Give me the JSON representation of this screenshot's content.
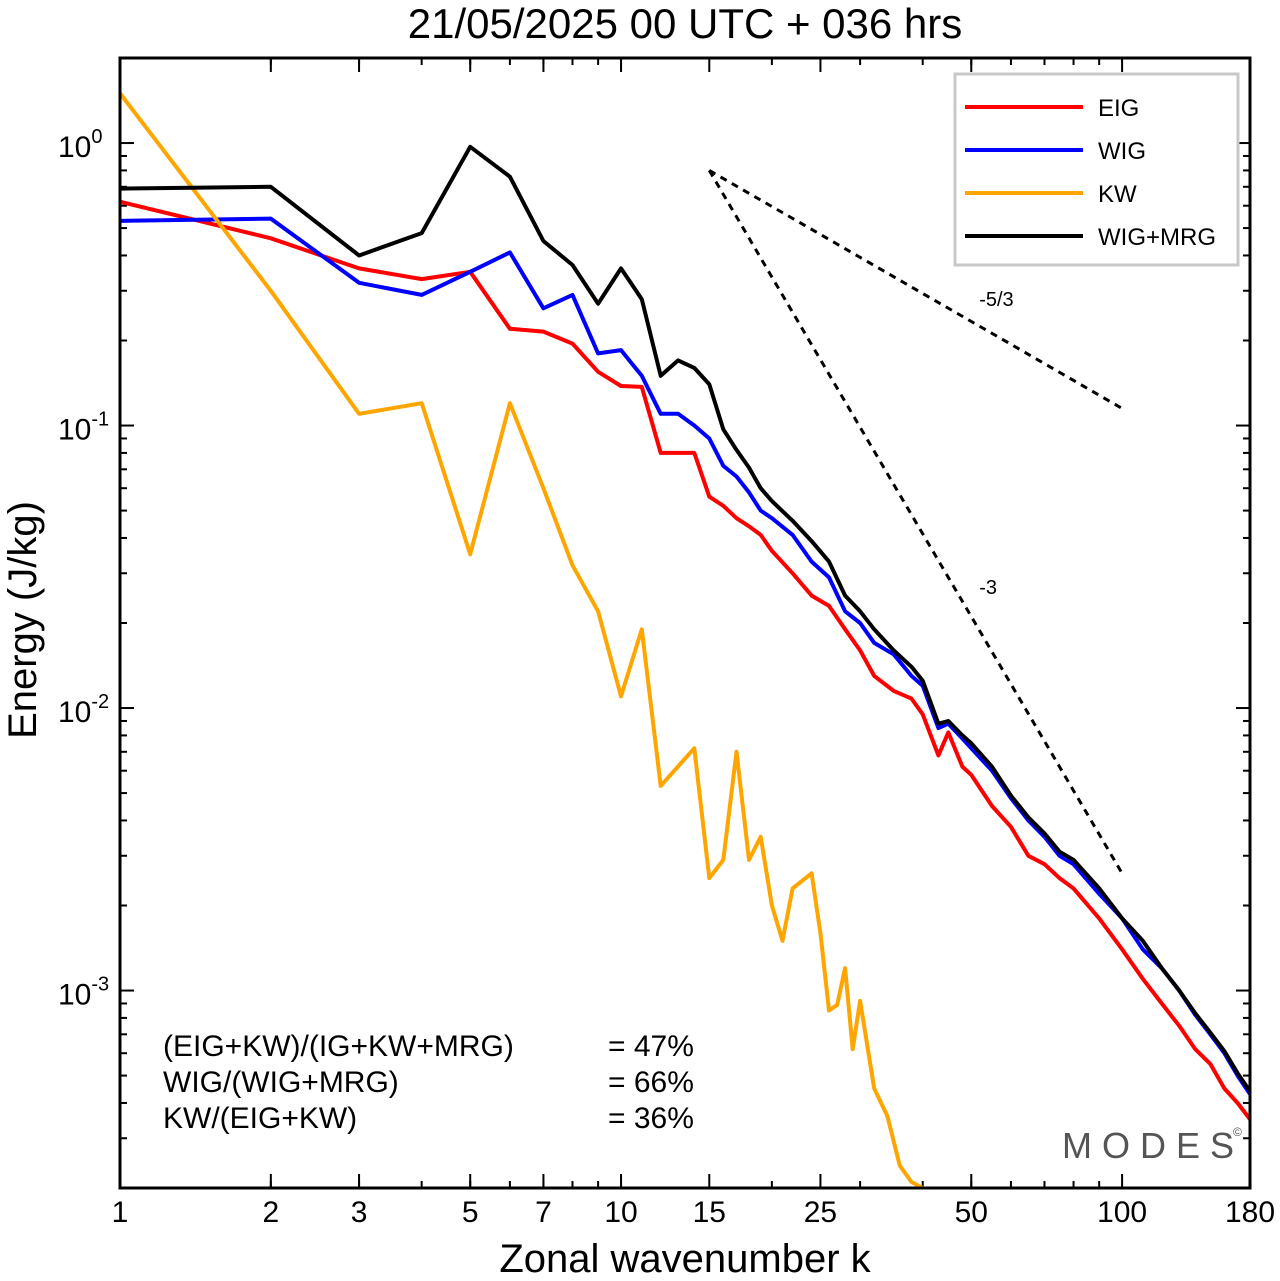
{
  "title": "21/05/2025  00 UTC  + 036 hrs",
  "chart_data": {
    "type": "line",
    "title": "21/05/2025  00 UTC  + 036 hrs",
    "xlabel": "Zonal wavenumber k",
    "ylabel": "Energy (J/kg)",
    "xscale": "log",
    "yscale": "log",
    "xlim": [
      1,
      180
    ],
    "ylim": [
      0.0002,
      2.0
    ],
    "x_ticks": [
      1,
      2,
      3,
      5,
      7,
      10,
      15,
      25,
      50,
      100,
      180
    ],
    "x_tick_labels": [
      "1",
      "2",
      "3",
      "5",
      "7",
      "10",
      "15",
      "25",
      "50",
      "100",
      "180"
    ],
    "y_ticks": [
      {
        "base": "10",
        "exp": "0",
        "value": 1
      },
      {
        "base": "10",
        "exp": "-1",
        "value": 0.1
      },
      {
        "base": "10",
        "exp": "-2",
        "value": 0.01
      },
      {
        "base": "10",
        "exp": "-3",
        "value": 0.001
      }
    ],
    "grid": false,
    "legend_position": "top-right",
    "series": [
      {
        "name": "EIG",
        "color": "#ff0000",
        "x": [
          1,
          2,
          3,
          4,
          5,
          6,
          7,
          8,
          9,
          10,
          11,
          12,
          13,
          14,
          15,
          16,
          17,
          18,
          19,
          20,
          22,
          24,
          26,
          28,
          30,
          32,
          35,
          38,
          40,
          43,
          45,
          48,
          50,
          55,
          60,
          65,
          70,
          75,
          80,
          90,
          100,
          110,
          120,
          130,
          140,
          150,
          160,
          170,
          180
        ],
        "y": [
          0.62,
          0.46,
          0.36,
          0.33,
          0.35,
          0.22,
          0.215,
          0.195,
          0.155,
          0.138,
          0.137,
          0.08,
          0.08,
          0.08,
          0.056,
          0.052,
          0.047,
          0.044,
          0.041,
          0.036,
          0.03,
          0.025,
          0.023,
          0.019,
          0.016,
          0.013,
          0.0115,
          0.0108,
          0.0095,
          0.0068,
          0.0082,
          0.0062,
          0.0058,
          0.0045,
          0.0038,
          0.003,
          0.0028,
          0.0025,
          0.0023,
          0.0018,
          0.0014,
          0.0011,
          0.0009,
          0.00075,
          0.00062,
          0.00055,
          0.00045,
          0.0004,
          0.00035
        ]
      },
      {
        "name": "WIG",
        "color": "#0000ff",
        "x": [
          1,
          2,
          3,
          4,
          5,
          6,
          7,
          8,
          9,
          10,
          11,
          12,
          13,
          14,
          15,
          16,
          17,
          18,
          19,
          20,
          22,
          24,
          26,
          28,
          30,
          32,
          35,
          38,
          40,
          43,
          45,
          48,
          50,
          55,
          60,
          65,
          70,
          75,
          80,
          90,
          100,
          110,
          120,
          130,
          140,
          150,
          160,
          170,
          180
        ],
        "y": [
          0.53,
          0.54,
          0.32,
          0.29,
          0.35,
          0.41,
          0.26,
          0.29,
          0.18,
          0.185,
          0.15,
          0.11,
          0.11,
          0.1,
          0.09,
          0.072,
          0.066,
          0.058,
          0.05,
          0.047,
          0.041,
          0.033,
          0.029,
          0.022,
          0.02,
          0.017,
          0.0155,
          0.013,
          0.012,
          0.0085,
          0.0088,
          0.0078,
          0.0072,
          0.006,
          0.0048,
          0.004,
          0.0035,
          0.003,
          0.0028,
          0.0022,
          0.0018,
          0.0014,
          0.0012,
          0.001,
          0.00082,
          0.0007,
          0.0006,
          0.0005,
          0.00043
        ]
      },
      {
        "name": "KW",
        "color": "#ffa500",
        "x": [
          1,
          2,
          3,
          4,
          5,
          6,
          7,
          8,
          9,
          10,
          11,
          12,
          14,
          15,
          16,
          17,
          18,
          19,
          20,
          21,
          22,
          24,
          25,
          26,
          27,
          28,
          29,
          30,
          32,
          34,
          36,
          38,
          40
        ],
        "y": [
          1.5,
          0.3,
          0.11,
          0.12,
          0.035,
          0.12,
          0.06,
          0.032,
          0.022,
          0.011,
          0.019,
          0.0053,
          0.0072,
          0.0025,
          0.0029,
          0.007,
          0.0029,
          0.0035,
          0.002,
          0.0015,
          0.0023,
          0.0026,
          0.0016,
          0.00085,
          0.00089,
          0.0012,
          0.00062,
          0.00092,
          0.00045,
          0.00036,
          0.00024,
          0.00021,
          0.0002
        ]
      },
      {
        "name": "WIG+MRG",
        "color": "#000000",
        "x": [
          1,
          2,
          3,
          4,
          5,
          6,
          7,
          8,
          9,
          10,
          11,
          12,
          13,
          14,
          15,
          16,
          17,
          18,
          19,
          20,
          22,
          24,
          26,
          28,
          30,
          32,
          35,
          38,
          40,
          43,
          45,
          48,
          50,
          55,
          60,
          65,
          70,
          75,
          80,
          90,
          100,
          110,
          120,
          130,
          140,
          150,
          160,
          170,
          180
        ],
        "y": [
          0.69,
          0.7,
          0.4,
          0.48,
          0.97,
          0.76,
          0.45,
          0.37,
          0.27,
          0.36,
          0.28,
          0.15,
          0.17,
          0.16,
          0.14,
          0.097,
          0.082,
          0.071,
          0.06,
          0.054,
          0.046,
          0.039,
          0.033,
          0.025,
          0.022,
          0.019,
          0.016,
          0.014,
          0.0125,
          0.0088,
          0.009,
          0.008,
          0.0075,
          0.0062,
          0.0049,
          0.0041,
          0.0036,
          0.0031,
          0.0029,
          0.0023,
          0.0018,
          0.0015,
          0.0012,
          0.001,
          0.00083,
          0.00071,
          0.00061,
          0.00051,
          0.00044
        ]
      }
    ],
    "reference_slopes": [
      {
        "label": "-5/3",
        "k_start": 15,
        "k_end": 100,
        "e_start": 0.8,
        "e_end": 0.115
      },
      {
        "label": "-3",
        "k_start": 15,
        "k_end": 100,
        "e_start": 0.8,
        "e_end": 0.0026
      }
    ]
  },
  "stats": [
    {
      "label": "(EIG+KW)/(IG+KW+MRG)",
      "value": "= 47%"
    },
    {
      "label": "WIG/(WIG+MRG)",
      "value": "= 66%"
    },
    {
      "label": "KW/(EIG+KW)",
      "value": "= 36%"
    }
  ],
  "watermark": "MODES",
  "watermark_mark": "©"
}
